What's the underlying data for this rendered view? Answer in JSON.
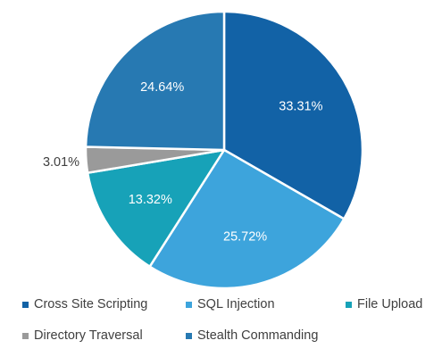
{
  "chart_data": {
    "type": "pie",
    "title": "",
    "series": [
      {
        "name": "Cross Site Scripting",
        "value": 33.31,
        "label": "33.31%",
        "color": "#1262a6"
      },
      {
        "name": "SQL Injection",
        "value": 25.72,
        "label": "25.72%",
        "color": "#3da4dc"
      },
      {
        "name": "File Upload",
        "value": 13.32,
        "label": "13.32%",
        "color": "#17a2b8"
      },
      {
        "name": "Directory Traversal",
        "value": 3.01,
        "label": "3.01%",
        "color": "#9a9a9a"
      },
      {
        "name": "Stealth Commanding",
        "value": 24.64,
        "label": "24.64%",
        "color": "#2779b2"
      }
    ],
    "start_angle": "12 o'clock",
    "direction": "clockwise",
    "legend_placement": "bottom"
  }
}
